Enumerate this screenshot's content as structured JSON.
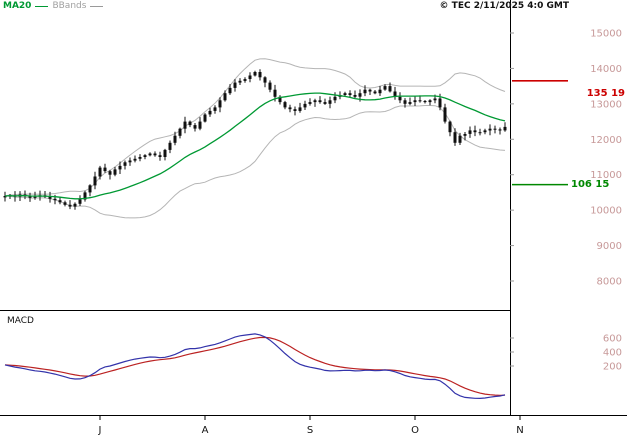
{
  "header": {
    "legend_ma20": "MA20",
    "legend_bbands": "BBands",
    "copyright": "© TEC 2/11/2025 4:0 GMT"
  },
  "price_axis_labels": [
    "15000",
    "14000",
    "13000",
    "12000",
    "11000",
    "10000",
    "9000",
    "8000"
  ],
  "macd_panel": {
    "label": "MACD",
    "axis_labels": [
      "600",
      "400",
      "200"
    ]
  },
  "markers": {
    "resistance": {
      "label": "135 19",
      "price": 13650
    },
    "support": {
      "label": "106 15",
      "price": 10720
    }
  },
  "colors": {
    "ma20": "#009933",
    "bbands": "#b5b5b5",
    "candle": "#111111",
    "macd_line": "#3333aa",
    "macd_signal": "#bb2222",
    "axis_label": "#c79999",
    "month_label": "#111111",
    "marker_red": "#cc0000",
    "marker_green": "#008800",
    "axis_line": "#000000"
  },
  "chart_data": {
    "type": "candlestick",
    "title": "",
    "x_tick_labels": [
      "J",
      "A",
      "S",
      "O",
      "N"
    ],
    "y_range": [
      8000,
      15000
    ],
    "y_tick_values": [
      15000,
      14000,
      13000,
      12000,
      11000,
      10000,
      9000,
      8000
    ],
    "closes": [
      10400,
      10420,
      10380,
      10440,
      10400,
      10350,
      10380,
      10420,
      10380,
      10320,
      10280,
      10220,
      10150,
      10100,
      10180,
      10300,
      10500,
      10700,
      10950,
      11200,
      11100,
      11000,
      11150,
      11250,
      11350,
      11400,
      11450,
      11500,
      11550,
      11600,
      11550,
      11500,
      11700,
      11900,
      12100,
      12300,
      12500,
      12400,
      12300,
      12500,
      12700,
      12800,
      12900,
      13100,
      13300,
      13450,
      13600,
      13650,
      13700,
      13800,
      13900,
      13750,
      13600,
      13400,
      13200,
      13050,
      12900,
      12850,
      12800,
      12900,
      13000,
      13050,
      13100,
      13050,
      13000,
      13100,
      13200,
      13250,
      13300,
      13250,
      13200,
      13300,
      13400,
      13350,
      13300,
      13400,
      13500,
      13350,
      13200,
      13100,
      13000,
      13050,
      13100,
      13080,
      13050,
      13100,
      13150,
      12900,
      12500,
      12200,
      11900,
      12100,
      12150,
      12250,
      12200,
      12200,
      12250,
      12300,
      12280,
      12250,
      12350
    ],
    "overlays": [
      {
        "name": "MA20",
        "window": 20
      },
      {
        "name": "BBands",
        "window": 20,
        "sigma": 2
      }
    ],
    "indicator": {
      "name": "MACD",
      "fast": 12,
      "slow": 26,
      "signal": 9,
      "axis_labels": [
        600,
        400,
        200
      ]
    },
    "levels": {
      "resistance": 13650,
      "support": 10720
    }
  }
}
